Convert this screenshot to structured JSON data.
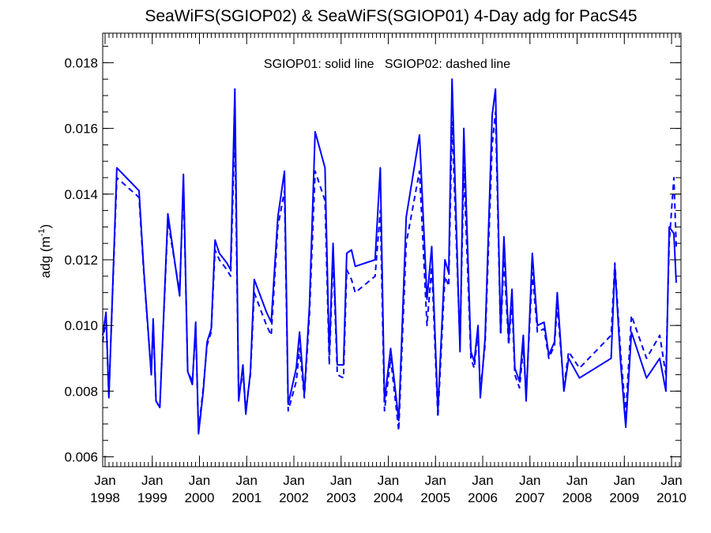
{
  "chart_data": {
    "type": "line",
    "title": "SeaWiFS(SGIOP02) & SeaWiFS(SGIOP01) 4-Day adg for PacS45",
    "subtitle": "SGIOP01: solid line   SGIOP02: dashed line",
    "ylabel_main": "adg (m",
    "ylabel_sup": "-1",
    "ylabel_end": ")",
    "xlabel": "",
    "xlim": [
      1997.95,
      2010.2
    ],
    "ylim": [
      0.0057,
      0.0189
    ],
    "grid": false,
    "legend": "none",
    "yticks": [
      {
        "value": 0.006,
        "label": "0.006"
      },
      {
        "value": 0.008,
        "label": "0.008"
      },
      {
        "value": 0.01,
        "label": "0.010"
      },
      {
        "value": 0.012,
        "label": "0.012"
      },
      {
        "value": 0.014,
        "label": "0.014"
      },
      {
        "value": 0.016,
        "label": "0.016"
      },
      {
        "value": 0.018,
        "label": "0.018"
      }
    ],
    "xticks": [
      {
        "value": 1998,
        "month": "Jan",
        "year": "1998"
      },
      {
        "value": 1999,
        "month": "Jan",
        "year": "1999"
      },
      {
        "value": 2000,
        "month": "Jan",
        "year": "2000"
      },
      {
        "value": 2001,
        "month": "Jan",
        "year": "2001"
      },
      {
        "value": 2002,
        "month": "Jan",
        "year": "2002"
      },
      {
        "value": 2003,
        "month": "Jan",
        "year": "2003"
      },
      {
        "value": 2004,
        "month": "Jan",
        "year": "2004"
      },
      {
        "value": 2005,
        "month": "Jan",
        "year": "2005"
      },
      {
        "value": 2006,
        "month": "Jan",
        "year": "2006"
      },
      {
        "value": 2007,
        "month": "Jan",
        "year": "2007"
      },
      {
        "value": 2008,
        "month": "Jan",
        "year": "2008"
      },
      {
        "value": 2009,
        "month": "Jan",
        "year": "2009"
      },
      {
        "value": 2010,
        "month": "Jan",
        "year": "2010"
      }
    ],
    "color": "#0000ff",
    "series": [
      {
        "name": "SGIOP01",
        "style": "solid",
        "points": [
          [
            1997.95,
            0.0097
          ],
          [
            1998.02,
            0.0104
          ],
          [
            1998.08,
            0.0078
          ],
          [
            1998.25,
            0.0148
          ],
          [
            1998.72,
            0.0141
          ],
          [
            1998.82,
            0.0117
          ],
          [
            1998.98,
            0.0085
          ],
          [
            1999.02,
            0.0102
          ],
          [
            1999.08,
            0.0077
          ],
          [
            1999.16,
            0.0075
          ],
          [
            1999.33,
            0.0134
          ],
          [
            1999.58,
            0.0109
          ],
          [
            1999.66,
            0.0146
          ],
          [
            1999.75,
            0.0086
          ],
          [
            1999.85,
            0.0082
          ],
          [
            1999.92,
            0.0101
          ],
          [
            1999.98,
            0.0067
          ],
          [
            2000.08,
            0.008
          ],
          [
            2000.16,
            0.0095
          ],
          [
            2000.25,
            0.0099
          ],
          [
            2000.33,
            0.0126
          ],
          [
            2000.42,
            0.0122
          ],
          [
            2000.58,
            0.0119
          ],
          [
            2000.66,
            0.0117
          ],
          [
            2000.75,
            0.0172
          ],
          [
            2000.83,
            0.0077
          ],
          [
            2000.92,
            0.0088
          ],
          [
            2000.98,
            0.0073
          ],
          [
            2001.08,
            0.0086
          ],
          [
            2001.16,
            0.0114
          ],
          [
            2001.42,
            0.0104
          ],
          [
            2001.52,
            0.0101
          ],
          [
            2001.66,
            0.0133
          ],
          [
            2001.8,
            0.0147
          ],
          [
            2001.88,
            0.0076
          ],
          [
            2002.05,
            0.0087
          ],
          [
            2002.12,
            0.0098
          ],
          [
            2002.22,
            0.0079
          ],
          [
            2002.33,
            0.0106
          ],
          [
            2002.45,
            0.0159
          ],
          [
            2002.66,
            0.0148
          ],
          [
            2002.75,
            0.0091
          ],
          [
            2002.83,
            0.0125
          ],
          [
            2002.92,
            0.0088
          ],
          [
            2003.05,
            0.0088
          ],
          [
            2003.12,
            0.0122
          ],
          [
            2003.22,
            0.0123
          ],
          [
            2003.3,
            0.0118
          ],
          [
            2003.72,
            0.012
          ],
          [
            2003.83,
            0.0148
          ],
          [
            2003.92,
            0.0077
          ],
          [
            2004.05,
            0.0093
          ],
          [
            2004.12,
            0.0084
          ],
          [
            2004.22,
            0.0071
          ],
          [
            2004.38,
            0.0133
          ],
          [
            2004.66,
            0.0158
          ],
          [
            2004.82,
            0.0108
          ],
          [
            2004.92,
            0.0124
          ],
          [
            2005.05,
            0.0074
          ],
          [
            2005.2,
            0.012
          ],
          [
            2005.28,
            0.0116
          ],
          [
            2005.35,
            0.0175
          ],
          [
            2005.52,
            0.0092
          ],
          [
            2005.6,
            0.016
          ],
          [
            2005.75,
            0.0092
          ],
          [
            2005.82,
            0.0089
          ],
          [
            2005.9,
            0.01
          ],
          [
            2005.95,
            0.0078
          ],
          [
            2006.05,
            0.0096
          ],
          [
            2006.2,
            0.0164
          ],
          [
            2006.27,
            0.0172
          ],
          [
            2006.38,
            0.0098
          ],
          [
            2006.45,
            0.0127
          ],
          [
            2006.55,
            0.0096
          ],
          [
            2006.62,
            0.0111
          ],
          [
            2006.68,
            0.0087
          ],
          [
            2006.78,
            0.0083
          ],
          [
            2006.86,
            0.0097
          ],
          [
            2006.92,
            0.0077
          ],
          [
            2007.05,
            0.0122
          ],
          [
            2007.16,
            0.01
          ],
          [
            2007.3,
            0.0101
          ],
          [
            2007.4,
            0.0091
          ],
          [
            2007.52,
            0.0095
          ],
          [
            2007.58,
            0.011
          ],
          [
            2007.72,
            0.008
          ],
          [
            2007.82,
            0.009
          ],
          [
            2008.05,
            0.0084
          ],
          [
            2008.72,
            0.009
          ],
          [
            2008.8,
            0.0118
          ],
          [
            2008.92,
            0.0089
          ],
          [
            2009.03,
            0.0069
          ],
          [
            2009.15,
            0.0098
          ],
          [
            2009.47,
            0.0084
          ],
          [
            2009.75,
            0.009
          ],
          [
            2009.88,
            0.008
          ],
          [
            2009.95,
            0.013
          ],
          [
            2010.05,
            0.0128
          ],
          [
            2010.1,
            0.0113
          ]
        ]
      },
      {
        "name": "SGIOP02",
        "style": "dashed",
        "points": [
          [
            1997.95,
            0.0095
          ],
          [
            1998.02,
            0.0102
          ],
          [
            1998.08,
            0.0079
          ],
          [
            1998.25,
            0.0145
          ],
          [
            1998.72,
            0.0139
          ],
          [
            1998.82,
            0.0116
          ],
          [
            1998.98,
            0.0085
          ],
          [
            1999.02,
            0.0101
          ],
          [
            1999.08,
            0.0077
          ],
          [
            1999.16,
            0.0075
          ],
          [
            1999.33,
            0.0132
          ],
          [
            1999.58,
            0.011
          ],
          [
            1999.66,
            0.0143
          ],
          [
            1999.75,
            0.0086
          ],
          [
            1999.85,
            0.0083
          ],
          [
            1999.92,
            0.0099
          ],
          [
            1999.98,
            0.0068
          ],
          [
            2000.08,
            0.0081
          ],
          [
            2000.16,
            0.0094
          ],
          [
            2000.25,
            0.0098
          ],
          [
            2000.33,
            0.0123
          ],
          [
            2000.42,
            0.012
          ],
          [
            2000.58,
            0.0117
          ],
          [
            2000.66,
            0.0115
          ],
          [
            2000.75,
            0.016
          ],
          [
            2000.83,
            0.0078
          ],
          [
            2000.92,
            0.0086
          ],
          [
            2000.98,
            0.0074
          ],
          [
            2001.08,
            0.0085
          ],
          [
            2001.16,
            0.011
          ],
          [
            2001.42,
            0.01
          ],
          [
            2001.52,
            0.0097
          ],
          [
            2001.66,
            0.013
          ],
          [
            2001.8,
            0.0141
          ],
          [
            2001.88,
            0.0074
          ],
          [
            2002.05,
            0.0083
          ],
          [
            2002.12,
            0.0093
          ],
          [
            2002.22,
            0.0078
          ],
          [
            2002.33,
            0.0103
          ],
          [
            2002.45,
            0.0147
          ],
          [
            2002.66,
            0.0138
          ],
          [
            2002.75,
            0.0088
          ],
          [
            2002.83,
            0.0121
          ],
          [
            2002.92,
            0.0085
          ],
          [
            2003.05,
            0.0084
          ],
          [
            2003.12,
            0.0117
          ],
          [
            2003.22,
            0.0114
          ],
          [
            2003.3,
            0.011
          ],
          [
            2003.72,
            0.0115
          ],
          [
            2003.83,
            0.0135
          ],
          [
            2003.92,
            0.0074
          ],
          [
            2004.05,
            0.009
          ],
          [
            2004.12,
            0.0081
          ],
          [
            2004.22,
            0.0068
          ],
          [
            2004.38,
            0.0125
          ],
          [
            2004.66,
            0.0147
          ],
          [
            2004.82,
            0.01
          ],
          [
            2004.92,
            0.0118
          ],
          [
            2005.05,
            0.0072
          ],
          [
            2005.2,
            0.0115
          ],
          [
            2005.28,
            0.0112
          ],
          [
            2005.35,
            0.0162
          ],
          [
            2005.52,
            0.0094
          ],
          [
            2005.6,
            0.0148
          ],
          [
            2005.75,
            0.009
          ],
          [
            2005.82,
            0.0087
          ],
          [
            2005.9,
            0.0098
          ],
          [
            2005.95,
            0.008
          ],
          [
            2006.05,
            0.0094
          ],
          [
            2006.2,
            0.0155
          ],
          [
            2006.27,
            0.0165
          ],
          [
            2006.38,
            0.0097
          ],
          [
            2006.45,
            0.012
          ],
          [
            2006.55,
            0.0094
          ],
          [
            2006.62,
            0.0107
          ],
          [
            2006.68,
            0.0085
          ],
          [
            2006.78,
            0.0081
          ],
          [
            2006.86,
            0.0093
          ],
          [
            2006.92,
            0.0079
          ],
          [
            2007.05,
            0.0116
          ],
          [
            2007.16,
            0.0098
          ],
          [
            2007.3,
            0.0099
          ],
          [
            2007.4,
            0.009
          ],
          [
            2007.52,
            0.0094
          ],
          [
            2007.58,
            0.0106
          ],
          [
            2007.72,
            0.0081
          ],
          [
            2007.82,
            0.0092
          ],
          [
            2008.05,
            0.0087
          ],
          [
            2008.72,
            0.0097
          ],
          [
            2008.8,
            0.0119
          ],
          [
            2008.92,
            0.0092
          ],
          [
            2009.03,
            0.0073
          ],
          [
            2009.15,
            0.0103
          ],
          [
            2009.47,
            0.009
          ],
          [
            2009.75,
            0.0097
          ],
          [
            2009.88,
            0.0085
          ],
          [
            2009.95,
            0.0125
          ],
          [
            2010.05,
            0.0145
          ],
          [
            2010.1,
            0.0124
          ]
        ]
      }
    ]
  }
}
